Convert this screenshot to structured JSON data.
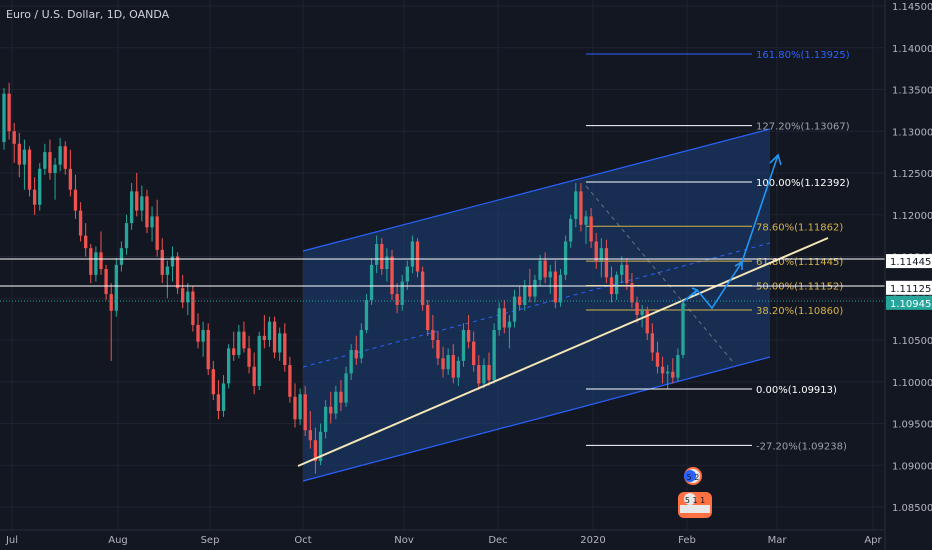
{
  "header": {
    "symbol_title": "Euro / U.S. Dollar, 1D, OANDA"
  },
  "colors": {
    "background": "#131722",
    "grid": "#1e2330",
    "up_candle": "#26a69a",
    "down_candle": "#ef5350",
    "channel": "#2962ff",
    "trendline": "#f5e6b8",
    "fib_gold": "#d4b24a",
    "fib_white": "#ffffff",
    "projection": "#2196f3",
    "axis_text": "#b2b5be"
  },
  "chart_data": {
    "type": "candlestick",
    "symbol": "Euro / U.S. Dollar",
    "timeframe": "1D",
    "source": "OANDA",
    "x_ticks": [
      "Jul",
      "Aug",
      "Sep",
      "Oct",
      "Nov",
      "Dec",
      "2020",
      "Feb",
      "Mar",
      "Apr"
    ],
    "y_ticks": [
      "1.14500",
      "1.14000",
      "1.13500",
      "1.13000",
      "1.12500",
      "1.12000",
      "1.11500",
      "1.11000",
      "1.10500",
      "1.10000",
      "1.09500",
      "1.09000",
      "1.08500"
    ],
    "ylim": [
      1.0835,
      1.1455
    ],
    "price_labels": [
      {
        "value": 1.11445,
        "text": "1.11445",
        "style": "white"
      },
      {
        "value": 1.11125,
        "text": "1.11125",
        "style": "white"
      },
      {
        "value": 1.10945,
        "text": "1.10945",
        "style": "current"
      }
    ],
    "fibonacci": [
      {
        "label": "161.80%(1.13925)",
        "price": 1.13925
      },
      {
        "label": "127.20%(1.13067)",
        "price": 1.13067
      },
      {
        "label": "100.00%(1.12392)",
        "price": 1.12392
      },
      {
        "label": "78.60%(1.11862)",
        "price": 1.11862
      },
      {
        "label": "61.80%(1.11445)",
        "price": 1.11445
      },
      {
        "label": "50.00%(1.11152)",
        "price": 1.11152
      },
      {
        "label": "38.20%(1.10860)",
        "price": 1.1086
      },
      {
        "label": "0.00%(1.09913)",
        "price": 1.09913
      },
      {
        "label": "-27.20%(1.09238)",
        "price": 1.09238
      }
    ],
    "events": [
      {
        "label": "5 2"
      },
      {
        "label": "5 1 1"
      }
    ],
    "candles": [
      [
        1.1287,
        1.1352,
        1.1278,
        1.1345
      ],
      [
        1.1345,
        1.1358,
        1.129,
        1.13
      ],
      [
        1.13,
        1.131,
        1.1262,
        1.1285
      ],
      [
        1.1285,
        1.1298,
        1.1245,
        1.126
      ],
      [
        1.126,
        1.129,
        1.123,
        1.1278
      ],
      [
        1.1278,
        1.1282,
        1.1222,
        1.123
      ],
      [
        1.123,
        1.1245,
        1.12,
        1.1212
      ],
      [
        1.1212,
        1.1262,
        1.1205,
        1.1255
      ],
      [
        1.1255,
        1.1285,
        1.1248,
        1.1275
      ],
      [
        1.1275,
        1.129,
        1.1242,
        1.125
      ],
      [
        1.125,
        1.1268,
        1.1218,
        1.126
      ],
      [
        1.126,
        1.1292,
        1.1252,
        1.1282
      ],
      [
        1.1282,
        1.1288,
        1.1248,
        1.1255
      ],
      [
        1.1255,
        1.1278,
        1.1222,
        1.123
      ],
      [
        1.123,
        1.1248,
        1.1195,
        1.1205
      ],
      [
        1.1205,
        1.1215,
        1.1168,
        1.1175
      ],
      [
        1.1175,
        1.119,
        1.115,
        1.116
      ],
      [
        1.116,
        1.1165,
        1.1118,
        1.1128
      ],
      [
        1.1128,
        1.1162,
        1.112,
        1.1155
      ],
      [
        1.1155,
        1.118,
        1.1128,
        1.1135
      ],
      [
        1.1135,
        1.114,
        1.1098,
        1.1105
      ],
      [
        1.1105,
        1.1118,
        1.1025,
        1.1085
      ],
      [
        1.1085,
        1.1148,
        1.1078,
        1.114
      ],
      [
        1.114,
        1.1168,
        1.1132,
        1.116
      ],
      [
        1.116,
        1.12,
        1.1152,
        1.119
      ],
      [
        1.119,
        1.1238,
        1.1182,
        1.1228
      ],
      [
        1.1228,
        1.125,
        1.1198,
        1.1205
      ],
      [
        1.1205,
        1.1235,
        1.1192,
        1.1222
      ],
      [
        1.1222,
        1.123,
        1.1178,
        1.1185
      ],
      [
        1.1185,
        1.121,
        1.1168,
        1.1198
      ],
      [
        1.1198,
        1.1218,
        1.115,
        1.1158
      ],
      [
        1.1158,
        1.1172,
        1.1118,
        1.1128
      ],
      [
        1.1128,
        1.1145,
        1.11,
        1.1138
      ],
      [
        1.1138,
        1.1162,
        1.112,
        1.115
      ],
      [
        1.115,
        1.1155,
        1.1105,
        1.1112
      ],
      [
        1.1112,
        1.1128,
        1.1088,
        1.1095
      ],
      [
        1.1095,
        1.1118,
        1.108,
        1.1108
      ],
      [
        1.1108,
        1.1115,
        1.106,
        1.1068
      ],
      [
        1.1068,
        1.1082,
        1.104,
        1.1048
      ],
      [
        1.1048,
        1.1072,
        1.103,
        1.1062
      ],
      [
        1.1062,
        1.107,
        1.1008,
        1.1015
      ],
      [
        1.1015,
        1.1025,
        1.0978,
        1.0985
      ],
      [
        1.0985,
        1.1002,
        1.0955,
        1.0965
      ],
      [
        1.0965,
        1.1008,
        1.0958,
        1.0998
      ],
      [
        1.0998,
        1.1045,
        1.0992,
        1.104
      ],
      [
        1.104,
        1.106,
        1.1025,
        1.1032
      ],
      [
        1.1032,
        1.1068,
        1.1028,
        1.106
      ],
      [
        1.106,
        1.1072,
        1.1035,
        1.104
      ],
      [
        1.104,
        1.1055,
        1.101,
        1.1018
      ],
      [
        1.1018,
        1.1035,
        1.0985,
        1.0995
      ],
      [
        1.0995,
        1.106,
        1.099,
        1.1055
      ],
      [
        1.1055,
        1.108,
        1.104,
        1.105
      ],
      [
        1.105,
        1.1078,
        1.1042,
        1.1072
      ],
      [
        1.1072,
        1.1078,
        1.1028,
        1.1035
      ],
      [
        1.1035,
        1.1065,
        1.1025,
        1.1058
      ],
      [
        1.1058,
        1.107,
        1.1012,
        1.102
      ],
      [
        1.102,
        1.103,
        1.0975,
        1.0982
      ],
      [
        1.0982,
        1.0998,
        1.0945,
        1.0955
      ],
      [
        1.0955,
        1.0992,
        1.0948,
        1.0985
      ],
      [
        1.0985,
        1.0995,
        1.0935,
        1.0942
      ],
      [
        1.0942,
        1.0965,
        1.092,
        1.093
      ],
      [
        1.093,
        1.0945,
        1.089,
        1.0905
      ],
      [
        1.0905,
        1.095,
        1.09,
        1.094
      ],
      [
        1.094,
        1.0978,
        1.0932,
        1.097
      ],
      [
        1.097,
        1.0988,
        1.095,
        1.0962
      ],
      [
        1.0962,
        1.0995,
        1.0955,
        1.0988
      ],
      [
        1.0988,
        1.1002,
        1.0965,
        1.0975
      ],
      [
        1.0975,
        1.1018,
        1.097,
        1.101
      ],
      [
        1.101,
        1.1045,
        1.1002,
        1.1038
      ],
      [
        1.1038,
        1.1055,
        1.102,
        1.1028
      ],
      [
        1.1028,
        1.107,
        1.1022,
        1.1062
      ],
      [
        1.1062,
        1.1105,
        1.1058,
        1.1098
      ],
      [
        1.1098,
        1.1148,
        1.1092,
        1.114
      ],
      [
        1.114,
        1.1175,
        1.113,
        1.1165
      ],
      [
        1.1165,
        1.1172,
        1.1128,
        1.1135
      ],
      [
        1.1135,
        1.116,
        1.112,
        1.115
      ],
      [
        1.115,
        1.1158,
        1.1098,
        1.1105
      ],
      [
        1.1105,
        1.1118,
        1.1082,
        1.1092
      ],
      [
        1.1092,
        1.1128,
        1.1085,
        1.112
      ],
      [
        1.112,
        1.1145,
        1.111,
        1.1138
      ],
      [
        1.1138,
        1.1175,
        1.113,
        1.1168
      ],
      [
        1.1168,
        1.1172,
        1.1125,
        1.1132
      ],
      [
        1.1132,
        1.1138,
        1.1085,
        1.1092
      ],
      [
        1.1092,
        1.1098,
        1.1055,
        1.1062
      ],
      [
        1.1062,
        1.108,
        1.104,
        1.105
      ],
      [
        1.105,
        1.106,
        1.102,
        1.1028
      ],
      [
        1.1028,
        1.1042,
        1.1005,
        1.1015
      ],
      [
        1.1015,
        1.104,
        1.1008,
        1.1032
      ],
      [
        1.1032,
        1.1045,
        1.0998,
        1.1005
      ],
      [
        1.1005,
        1.103,
        1.0995,
        1.1025
      ],
      [
        1.1025,
        1.107,
        1.1018,
        1.1062
      ],
      [
        1.1062,
        1.108,
        1.104,
        1.1048
      ],
      [
        1.1048,
        1.106,
        1.1012,
        1.102
      ],
      [
        1.102,
        1.1032,
        1.099,
        1.0998
      ],
      [
        1.0998,
        1.1028,
        1.0992,
        1.102
      ],
      [
        1.102,
        1.1035,
        1.0995,
        1.1002
      ],
      [
        1.1002,
        1.107,
        1.0998,
        1.1062
      ],
      [
        1.1062,
        1.1095,
        1.1055,
        1.1088
      ],
      [
        1.1088,
        1.1098,
        1.1058,
        1.1065
      ],
      [
        1.1065,
        1.108,
        1.104,
        1.1072
      ],
      [
        1.1072,
        1.111,
        1.1065,
        1.1102
      ],
      [
        1.1102,
        1.1115,
        1.1085,
        1.1092
      ],
      [
        1.1092,
        1.1122,
        1.1085,
        1.1115
      ],
      [
        1.1115,
        1.1135,
        1.1095,
        1.1102
      ],
      [
        1.1102,
        1.1128,
        1.1095,
        1.1122
      ],
      [
        1.1122,
        1.1152,
        1.1115,
        1.1145
      ],
      [
        1.1145,
        1.1155,
        1.1118,
        1.1125
      ],
      [
        1.1125,
        1.114,
        1.1105,
        1.1132
      ],
      [
        1.1132,
        1.1145,
        1.1088,
        1.1095
      ],
      [
        1.1095,
        1.1135,
        1.109,
        1.1128
      ],
      [
        1.1128,
        1.1175,
        1.1122,
        1.1168
      ],
      [
        1.1168,
        1.12,
        1.116,
        1.1195
      ],
      [
        1.1195,
        1.1238,
        1.1185,
        1.1228
      ],
      [
        1.1228,
        1.1238,
        1.118,
        1.1188
      ],
      [
        1.1188,
        1.1205,
        1.1165,
        1.1198
      ],
      [
        1.1198,
        1.1208,
        1.116,
        1.1168
      ],
      [
        1.1168,
        1.1178,
        1.1135,
        1.1145
      ],
      [
        1.1145,
        1.1172,
        1.1125,
        1.116
      ],
      [
        1.116,
        1.117,
        1.1118,
        1.1125
      ],
      [
        1.1125,
        1.1138,
        1.1095,
        1.1105
      ],
      [
        1.1105,
        1.1132,
        1.1098,
        1.1128
      ],
      [
        1.1128,
        1.115,
        1.1118,
        1.114
      ],
      [
        1.114,
        1.1148,
        1.111,
        1.1118
      ],
      [
        1.1118,
        1.113,
        1.1088,
        1.1095
      ],
      [
        1.1095,
        1.1102,
        1.107,
        1.108
      ],
      [
        1.108,
        1.1092,
        1.1065,
        1.1085
      ],
      [
        1.1085,
        1.109,
        1.105,
        1.1058
      ],
      [
        1.1058,
        1.107,
        1.1025,
        1.1035
      ],
      [
        1.1035,
        1.1048,
        1.101,
        1.1018
      ],
      [
        1.1018,
        1.103,
        1.0998,
        1.101
      ],
      [
        1.101,
        1.102,
        1.0992,
        1.1012
      ],
      [
        1.1012,
        1.1028,
        1.0998,
        1.1005
      ],
      [
        1.1005,
        1.104,
        1.1,
        1.1032
      ],
      [
        1.1032,
        1.1098,
        1.1028,
        1.1094
      ]
    ]
  }
}
